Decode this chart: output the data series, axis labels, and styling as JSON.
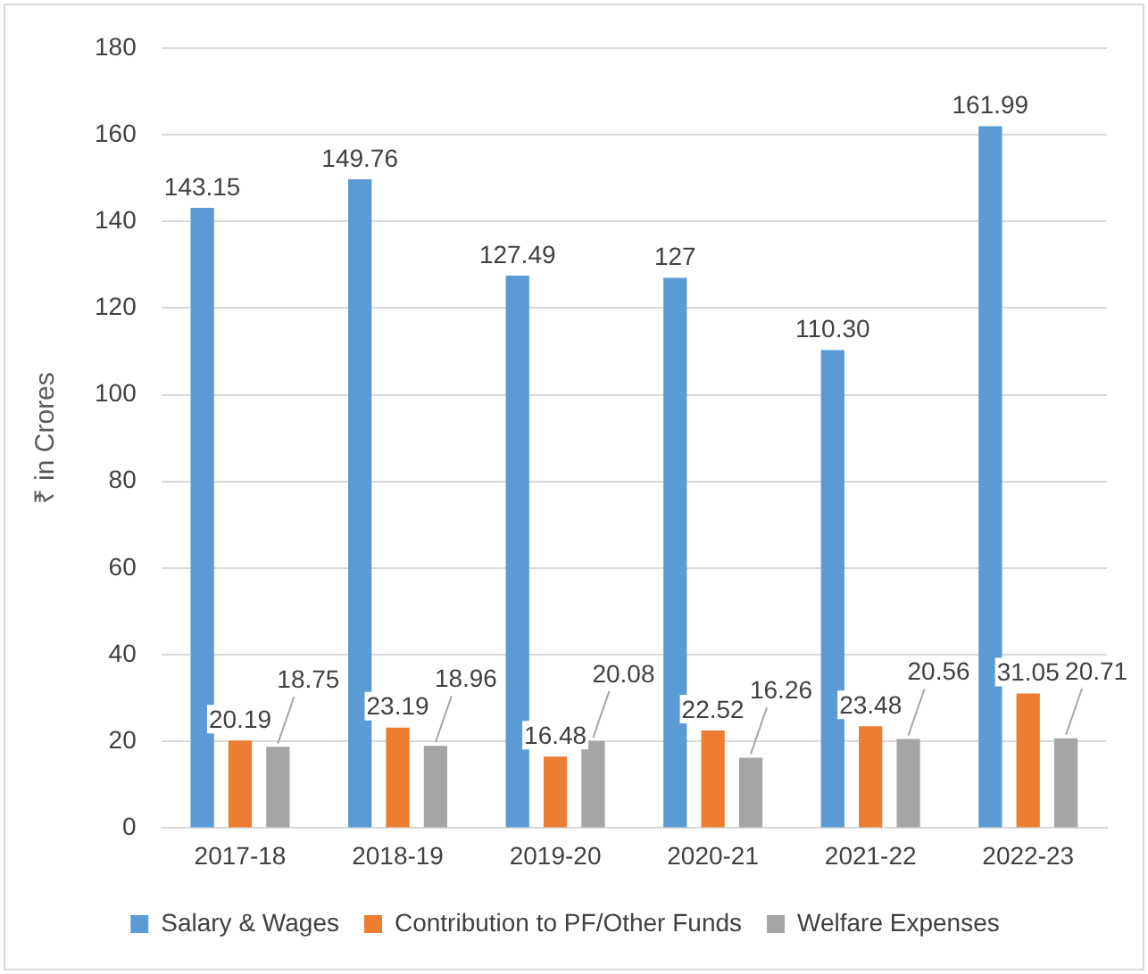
{
  "chart_data": {
    "type": "bar",
    "ylabel": "₹ in Crores",
    "categories": [
      "2017-18",
      "2018-19",
      "2019-20",
      "2020-21",
      "2021-22",
      "2022-23"
    ],
    "series": [
      {
        "name": "Salary & Wages",
        "color": "#5b9bd5",
        "values": [
          143.15,
          149.76,
          127.49,
          127,
          110.3,
          161.99
        ],
        "value_labels": [
          "143.15",
          "149.76",
          "127.49",
          "127",
          "110.30",
          "161.99"
        ]
      },
      {
        "name": "Contribution to PF/Other Funds",
        "color": "#ed7d31",
        "values": [
          20.19,
          23.19,
          16.48,
          22.52,
          23.48,
          31.05
        ],
        "value_labels": [
          "20.19",
          "23.19",
          "16.48",
          "22.52",
          "23.48",
          "31.05"
        ]
      },
      {
        "name": "Welfare Expenses",
        "color": "#a5a5a5",
        "values": [
          18.75,
          18.96,
          20.08,
          16.26,
          20.56,
          20.71
        ],
        "value_labels": [
          "18.75",
          "18.96",
          "20.08",
          "16.26",
          "20.56",
          "20.71"
        ]
      }
    ],
    "ylim": [
      0,
      180
    ],
    "yticks": [
      0,
      20,
      40,
      60,
      80,
      100,
      120,
      140,
      160,
      180
    ],
    "grid": "y",
    "legend": "bottom"
  }
}
